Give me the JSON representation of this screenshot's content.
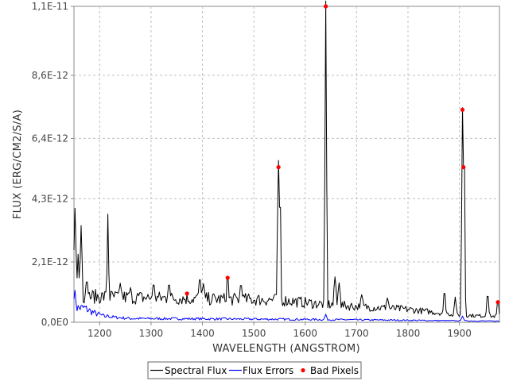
{
  "chart_data": {
    "type": "line",
    "title": "",
    "xlabel": "WAVELENGTH (ANGSTROM)",
    "ylabel": "FLUX (ERG/CM2/S/A)",
    "xlim": [
      1150,
      1978
    ],
    "ylim": [
      0,
      1.1e-11
    ],
    "grid": true,
    "legend_position": "bottom-center",
    "x_ticks": [
      1200,
      1300,
      1400,
      1500,
      1600,
      1700,
      1800,
      1900
    ],
    "x_tick_labels": [
      "1200",
      "1300",
      "1400",
      "1500",
      "1600",
      "1700",
      "1800",
      "1900"
    ],
    "y_ticks": [
      0,
      2.1e-12,
      4.3e-12,
      6.4e-12,
      8.6e-12,
      1.1e-11
    ],
    "y_tick_labels": [
      "0,0E0",
      "2,1E-12",
      "4,3E-12",
      "6,4E-12",
      "8,6E-12",
      "1,1E-11"
    ],
    "colors": {
      "flux": "#000000",
      "errors": "#0000ff",
      "bad": "#ff0000",
      "grid": "#c0c0c0"
    },
    "series": [
      {
        "name": "Spectral Flux",
        "color": "#000000",
        "baseline": [
          [
            1150,
            9e-13
          ],
          [
            1190,
            9e-13
          ],
          [
            1300,
            8.5e-13
          ],
          [
            1450,
            8e-13
          ],
          [
            1550,
            7.8e-13
          ],
          [
            1620,
            6.5e-13
          ],
          [
            1700,
            5.5e-13
          ],
          [
            1800,
            4.5e-13
          ],
          [
            1850,
            3.5e-13
          ],
          [
            1900,
            2.5e-13
          ],
          [
            1978,
            2e-13
          ]
        ],
        "features": [
          [
            1152,
            3.7e-12,
            2
          ],
          [
            1158,
            2.1e-12,
            2
          ],
          [
            1164,
            3.1e-12,
            2
          ],
          [
            1175,
            1.2e-12,
            3
          ],
          [
            1216,
            3.5e-12,
            1.5
          ],
          [
            1240,
            1.1e-12,
            3
          ],
          [
            1260,
            9.5e-13,
            3
          ],
          [
            1305,
            1.1e-12,
            3
          ],
          [
            1335,
            1.1e-12,
            3
          ],
          [
            1395,
            1.3e-12,
            3
          ],
          [
            1402,
            1.1e-12,
            3
          ],
          [
            1449,
            1.5e-12,
            2
          ],
          [
            1475,
            1.1e-12,
            3
          ],
          [
            1548,
            5.4e-12,
            2
          ],
          [
            1551,
            4e-12,
            1.5
          ],
          [
            1640,
            1.1e-11,
            1.5
          ],
          [
            1658,
            1.4e-12,
            2.5
          ],
          [
            1666,
            1.2e-12,
            2.5
          ],
          [
            1710,
            8e-13,
            3
          ],
          [
            1760,
            7e-13,
            3
          ],
          [
            1871,
            1e-12,
            2
          ],
          [
            1892,
            8e-13,
            2
          ],
          [
            1906,
            7.4e-12,
            1.5
          ],
          [
            1909,
            5.4e-12,
            1.5
          ],
          [
            1955,
            9e-13,
            2
          ],
          [
            1975,
            7e-13,
            2
          ]
        ]
      },
      {
        "name": "Flux Errors",
        "color": "#0000ff",
        "baseline": [
          [
            1150,
            1.1e-12
          ],
          [
            1155,
            5e-13
          ],
          [
            1170,
            5e-13
          ],
          [
            1190,
            3.2e-13
          ],
          [
            1210,
            2e-13
          ],
          [
            1260,
            1.3e-13
          ],
          [
            1400,
            1.2e-13
          ],
          [
            1600,
            1e-13
          ],
          [
            1800,
            7e-14
          ],
          [
            1900,
            5e-14
          ],
          [
            1978,
            4e-14
          ]
        ],
        "features": [
          [
            1152,
            6e-13,
            3
          ],
          [
            1216,
            2e-13,
            2
          ],
          [
            1640,
            2.5e-13,
            2
          ],
          [
            1906,
            2e-13,
            2
          ]
        ]
      }
    ],
    "bad_pixels": {
      "name": "Bad Pixels",
      "color": "#ff0000",
      "points": [
        [
          1370,
          1e-12
        ],
        [
          1449,
          1.55e-12
        ],
        [
          1548,
          5.4e-12
        ],
        [
          1640,
          1.1e-11
        ],
        [
          1906,
          7.4e-12
        ],
        [
          1908,
          5.4e-12
        ],
        [
          1975,
          7e-13
        ]
      ]
    }
  }
}
